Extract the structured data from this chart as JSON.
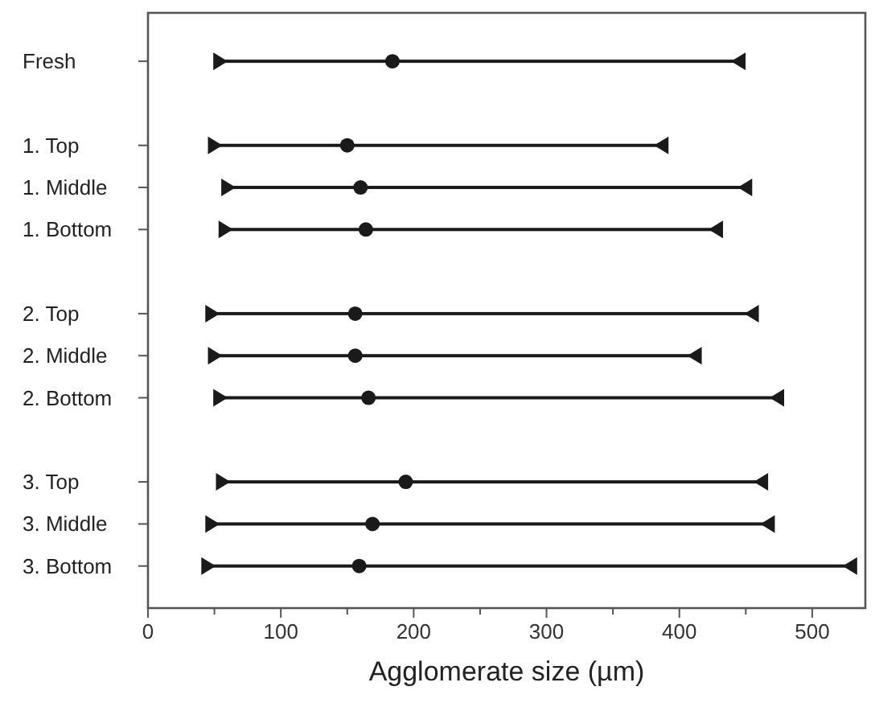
{
  "chart_data": {
    "type": "bar",
    "orientation": "horizontal",
    "xlabel": "Agglomerate size (µm)",
    "categories": [
      "Fresh",
      null,
      "1. Top",
      "1. Middle",
      "1. Bottom",
      null,
      "2. Top",
      "2. Middle",
      "2. Bottom",
      null,
      "3. Top",
      "3. Middle",
      "3. Bottom"
    ],
    "series": [
      {
        "color": "#1a1a1a",
        "base": [
          54,
          null,
          50,
          60,
          58,
          null,
          48,
          50,
          54,
          null,
          56,
          48,
          45
        ],
        "values": [
          391,
          null,
          337,
          390,
          370,
          null,
          407,
          362,
          420,
          null,
          406,
          419,
          484
        ]
      },
      {
        "type": "scatter",
        "color": "#1a1a1a",
        "marker": "triangle",
        "values": [
          54,
          null,
          50,
          60,
          58,
          null,
          48,
          50,
          54,
          null,
          56,
          48,
          45
        ]
      },
      {
        "type": "scatter",
        "color": "#1a1a1a",
        "marker": "circle",
        "values": [
          184,
          null,
          150,
          160,
          164,
          null,
          156,
          156,
          166,
          null,
          194,
          169,
          159
        ]
      },
      {
        "type": "scatter",
        "color": "#1a1a1a",
        "marker": "triangle",
        "values": [
          445,
          null,
          387,
          450,
          428,
          null,
          455,
          412,
          474,
          null,
          462,
          467,
          529
        ]
      }
    ],
    "grid": false,
    "xlim": [
      0,
      540
    ],
    "xticks": [
      0,
      {
        "value": 50,
        "label": null
      },
      100,
      {
        "value": 150,
        "label": null
      },
      200,
      {
        "value": 250,
        "label": null
      },
      300,
      {
        "value": 350,
        "label": null
      },
      400,
      {
        "value": 450,
        "label": null
      },
      500
    ]
  }
}
